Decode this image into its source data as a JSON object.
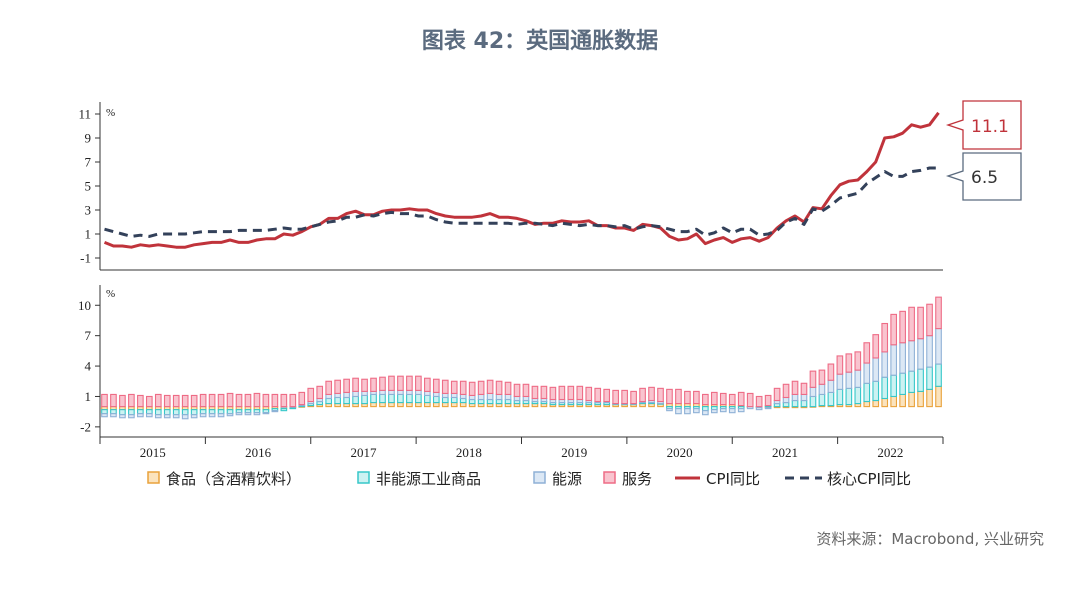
{
  "page": {
    "title": "图表 42：英国通胀数据",
    "source": "资料来源：Macrobond, 兴业研究"
  },
  "chart_data": {
    "type": "line+stacked-bar",
    "x_labels": [
      "2015",
      "2016",
      "2017",
      "2018",
      "2019",
      "2020",
      "2021",
      "2022"
    ],
    "legend": [
      "食品（含酒精饮料）",
      "非能源工业商品",
      "能源",
      "服务",
      "CPI同比",
      "核心CPI同比"
    ],
    "top": {
      "unit": "%",
      "ylim": [
        -2,
        12
      ],
      "yticks": [
        -1,
        1,
        3,
        5,
        7,
        9,
        11
      ],
      "callouts": {
        "cpi_last": "11.1",
        "core_last": "6.5"
      },
      "series": [
        {
          "name": "CPI同比",
          "color": "#c0333b",
          "style": "solid",
          "values": [
            0.3,
            0.0,
            0.0,
            -0.1,
            0.1,
            0.0,
            0.1,
            0.0,
            -0.1,
            -0.1,
            0.1,
            0.2,
            0.3,
            0.3,
            0.5,
            0.3,
            0.3,
            0.5,
            0.6,
            0.6,
            1.0,
            0.9,
            1.2,
            1.6,
            1.8,
            2.3,
            2.3,
            2.7,
            2.9,
            2.6,
            2.6,
            2.9,
            3.0,
            3.0,
            3.1,
            3.0,
            3.0,
            2.7,
            2.5,
            2.4,
            2.4,
            2.4,
            2.5,
            2.7,
            2.4,
            2.4,
            2.3,
            2.1,
            1.8,
            1.9,
            1.9,
            2.1,
            2.0,
            2.0,
            2.1,
            1.7,
            1.7,
            1.5,
            1.5,
            1.3,
            1.8,
            1.7,
            1.5,
            0.8,
            0.5,
            0.6,
            1.0,
            0.2,
            0.5,
            0.7,
            0.3,
            0.6,
            0.7,
            0.4,
            0.7,
            1.5,
            2.1,
            2.5,
            2.0,
            3.2,
            3.1,
            4.2,
            5.1,
            5.4,
            5.5,
            6.2,
            7.0,
            9.0,
            9.1,
            9.4,
            10.1,
            9.9,
            10.1,
            11.1
          ]
        },
        {
          "name": "核心CPI同比",
          "color": "#33415a",
          "style": "dashed",
          "values": [
            1.4,
            1.2,
            1.0,
            0.8,
            0.9,
            0.8,
            1.0,
            1.0,
            1.0,
            1.0,
            1.1,
            1.2,
            1.2,
            1.2,
            1.2,
            1.3,
            1.3,
            1.3,
            1.3,
            1.4,
            1.5,
            1.4,
            1.4,
            1.6,
            1.8,
            2.0,
            2.1,
            2.4,
            2.4,
            2.6,
            2.5,
            2.7,
            2.8,
            2.7,
            2.7,
            2.5,
            2.5,
            2.2,
            2.0,
            1.9,
            1.9,
            1.9,
            1.9,
            1.9,
            1.9,
            1.9,
            1.8,
            1.9,
            1.9,
            1.8,
            1.7,
            1.9,
            1.8,
            1.7,
            1.8,
            1.7,
            1.7,
            1.6,
            1.7,
            1.4,
            1.6,
            1.7,
            1.6,
            1.4,
            1.2,
            1.2,
            1.4,
            0.9,
            1.1,
            1.5,
            1.1,
            1.4,
            1.4,
            0.9,
            1.0,
            1.3,
            2.0,
            2.3,
            1.8,
            3.1,
            2.9,
            3.4,
            4.0,
            4.2,
            4.4,
            5.2,
            5.7,
            6.2,
            5.8,
            5.8,
            6.2,
            6.3,
            6.5,
            6.5
          ]
        }
      ]
    },
    "bottom": {
      "unit": "%",
      "ylim": [
        -3,
        12
      ],
      "yticks": [
        -2,
        1,
        4,
        7,
        10
      ],
      "series": [
        {
          "name": "食品（含酒精饮料）",
          "color": "#e9a23b",
          "values": [
            -0.3,
            -0.3,
            -0.3,
            -0.3,
            -0.3,
            -0.3,
            -0.3,
            -0.3,
            -0.3,
            -0.3,
            -0.3,
            -0.3,
            -0.3,
            -0.3,
            -0.3,
            -0.3,
            -0.3,
            -0.3,
            -0.3,
            -0.2,
            -0.2,
            -0.1,
            0.0,
            0.1,
            0.2,
            0.3,
            0.3,
            0.3,
            0.3,
            0.3,
            0.4,
            0.4,
            0.4,
            0.4,
            0.4,
            0.4,
            0.4,
            0.4,
            0.4,
            0.4,
            0.4,
            0.3,
            0.3,
            0.3,
            0.3,
            0.3,
            0.3,
            0.3,
            0.3,
            0.3,
            0.2,
            0.2,
            0.2,
            0.2,
            0.2,
            0.2,
            0.2,
            0.2,
            0.2,
            0.2,
            0.3,
            0.3,
            0.3,
            0.3,
            0.3,
            0.3,
            0.3,
            0.2,
            0.2,
            0.2,
            0.2,
            0.1,
            0.0,
            -0.1,
            -0.1,
            -0.1,
            -0.1,
            -0.1,
            -0.1,
            0.0,
            0.1,
            0.1,
            0.2,
            0.2,
            0.3,
            0.5,
            0.6,
            0.8,
            1.0,
            1.2,
            1.4,
            1.5,
            1.7,
            2.0
          ]
        },
        {
          "name": "非能源工业商品",
          "color": "#36c7c9",
          "values": [
            -0.4,
            -0.4,
            -0.5,
            -0.5,
            -0.4,
            -0.4,
            -0.5,
            -0.5,
            -0.5,
            -0.5,
            -0.5,
            -0.4,
            -0.4,
            -0.4,
            -0.4,
            -0.3,
            -0.3,
            -0.3,
            -0.3,
            -0.2,
            -0.2,
            -0.1,
            0.1,
            0.2,
            0.3,
            0.5,
            0.6,
            0.6,
            0.7,
            0.8,
            0.8,
            0.8,
            0.8,
            0.8,
            0.8,
            0.8,
            0.7,
            0.6,
            0.5,
            0.5,
            0.4,
            0.4,
            0.4,
            0.4,
            0.4,
            0.4,
            0.3,
            0.3,
            0.2,
            0.2,
            0.2,
            0.2,
            0.2,
            0.2,
            0.2,
            0.2,
            0.2,
            0.1,
            0.1,
            0.1,
            0.1,
            0.1,
            0.0,
            -0.2,
            -0.2,
            -0.2,
            -0.2,
            -0.4,
            -0.3,
            -0.2,
            -0.2,
            -0.2,
            0.0,
            0.0,
            0.1,
            0.3,
            0.4,
            0.6,
            0.6,
            1.0,
            1.1,
            1.3,
            1.5,
            1.6,
            1.6,
            1.8,
            1.9,
            2.1,
            2.1,
            2.1,
            2.1,
            2.2,
            2.2,
            2.2
          ]
        },
        {
          "name": "能源",
          "color": "#8fb1d6",
          "values": [
            -0.3,
            -0.3,
            -0.3,
            -0.3,
            -0.3,
            -0.3,
            -0.3,
            -0.3,
            -0.3,
            -0.4,
            -0.3,
            -0.3,
            -0.3,
            -0.3,
            -0.2,
            -0.2,
            -0.2,
            -0.2,
            -0.1,
            -0.1,
            0.0,
            0.0,
            0.1,
            0.2,
            0.3,
            0.4,
            0.4,
            0.5,
            0.5,
            0.4,
            0.3,
            0.4,
            0.4,
            0.4,
            0.4,
            0.4,
            0.4,
            0.4,
            0.4,
            0.4,
            0.4,
            0.4,
            0.5,
            0.6,
            0.5,
            0.5,
            0.4,
            0.4,
            0.3,
            0.3,
            0.3,
            0.3,
            0.3,
            0.3,
            0.2,
            0.1,
            0.1,
            0.0,
            0.0,
            0.0,
            0.1,
            0.2,
            0.2,
            -0.2,
            -0.5,
            -0.5,
            -0.4,
            -0.4,
            -0.3,
            -0.3,
            -0.4,
            -0.3,
            -0.2,
            -0.2,
            -0.1,
            0.3,
            0.5,
            0.6,
            0.6,
            0.9,
            1.0,
            1.2,
            1.5,
            1.6,
            1.7,
            2.0,
            2.3,
            2.5,
            3.0,
            3.0,
            3.0,
            3.0,
            3.1,
            3.5
          ]
        },
        {
          "name": "服务",
          "color": "#ee6c86",
          "values": [
            1.2,
            1.2,
            1.1,
            1.2,
            1.1,
            1.0,
            1.2,
            1.1,
            1.1,
            1.1,
            1.1,
            1.2,
            1.2,
            1.2,
            1.3,
            1.2,
            1.2,
            1.3,
            1.2,
            1.2,
            1.2,
            1.2,
            1.2,
            1.3,
            1.2,
            1.3,
            1.3,
            1.3,
            1.3,
            1.2,
            1.3,
            1.3,
            1.4,
            1.4,
            1.4,
            1.4,
            1.3,
            1.3,
            1.3,
            1.2,
            1.3,
            1.3,
            1.3,
            1.3,
            1.3,
            1.2,
            1.2,
            1.2,
            1.2,
            1.2,
            1.2,
            1.3,
            1.3,
            1.3,
            1.3,
            1.3,
            1.2,
            1.3,
            1.3,
            1.2,
            1.3,
            1.3,
            1.3,
            1.4,
            1.4,
            1.2,
            1.2,
            1.0,
            1.2,
            1.1,
            1.0,
            1.3,
            1.3,
            1.0,
            1.0,
            1.2,
            1.3,
            1.3,
            1.1,
            1.6,
            1.4,
            1.6,
            1.8,
            1.8,
            1.8,
            2.0,
            2.3,
            2.8,
            3.0,
            3.1,
            3.3,
            3.1,
            3.1,
            3.1
          ]
        }
      ]
    }
  }
}
